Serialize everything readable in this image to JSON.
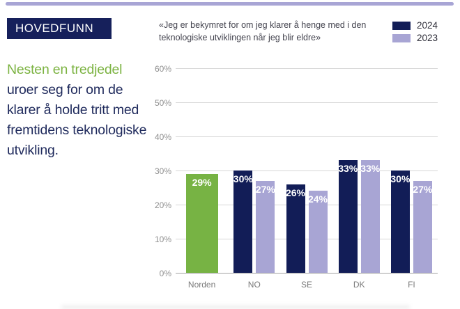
{
  "page": {
    "background": "#ffffff",
    "top_rule_color": "#a8a5d5"
  },
  "sidebar": {
    "tag_label": "HOVEDFUNN",
    "tag_bg": "#16205b",
    "headline_highlight": "Nesten en tredjedel",
    "headline_rest": "uroer seg for om de klarer å holde tritt med fremtidens teknologiske utvikling.",
    "highlight_color": "#7cb342",
    "text_color": "#1f2a5c"
  },
  "chart_data": {
    "type": "bar",
    "title": "«Jeg er bekymret for om jeg klarer å henge med i den teknologiske utviklingen når jeg blir eldre»",
    "categories": [
      "Norden",
      "NO",
      "SE",
      "DK",
      "FI"
    ],
    "series": [
      {
        "name": "2024",
        "color": "#121d57",
        "values": [
          null,
          30,
          26,
          33,
          30
        ]
      },
      {
        "name": "2023",
        "color": "#a8a5d4",
        "values": [
          null,
          27,
          24,
          33,
          27
        ]
      }
    ],
    "groups": [
      {
        "category": "Norden",
        "bars": [
          {
            "series": "Norden",
            "value": 29,
            "display": "29%",
            "color": "#77b344",
            "wide": true
          }
        ]
      },
      {
        "category": "NO",
        "bars": [
          {
            "series": "2024",
            "value": 30,
            "display": "30%",
            "color": "#121d57"
          },
          {
            "series": "2023",
            "value": 27,
            "display": "27%",
            "color": "#a8a5d4"
          }
        ]
      },
      {
        "category": "SE",
        "bars": [
          {
            "series": "2024",
            "value": 26,
            "display": "26%",
            "color": "#121d57"
          },
          {
            "series": "2023",
            "value": 24,
            "display": "24%",
            "color": "#a8a5d4"
          }
        ]
      },
      {
        "category": "DK",
        "bars": [
          {
            "series": "2024",
            "value": 33,
            "display": "33%",
            "color": "#121d57"
          },
          {
            "series": "2023",
            "value": 33,
            "display": "33%",
            "color": "#a8a5d4"
          }
        ]
      },
      {
        "category": "FI",
        "bars": [
          {
            "series": "2024",
            "value": 30,
            "display": "30%",
            "color": "#121d57"
          },
          {
            "series": "2023",
            "value": 27,
            "display": "27%",
            "color": "#a8a5d4"
          }
        ]
      }
    ],
    "legend": [
      {
        "label": "2024",
        "color": "#121d57"
      },
      {
        "label": "2023",
        "color": "#a8a5d4"
      }
    ],
    "ylim": [
      0,
      60
    ],
    "ytick_labels": [
      "0%",
      "10%",
      "20%",
      "30%",
      "40%",
      "50%",
      "60%"
    ],
    "grid": true,
    "legend_position": "top-right",
    "xlabel": "",
    "ylabel": ""
  }
}
